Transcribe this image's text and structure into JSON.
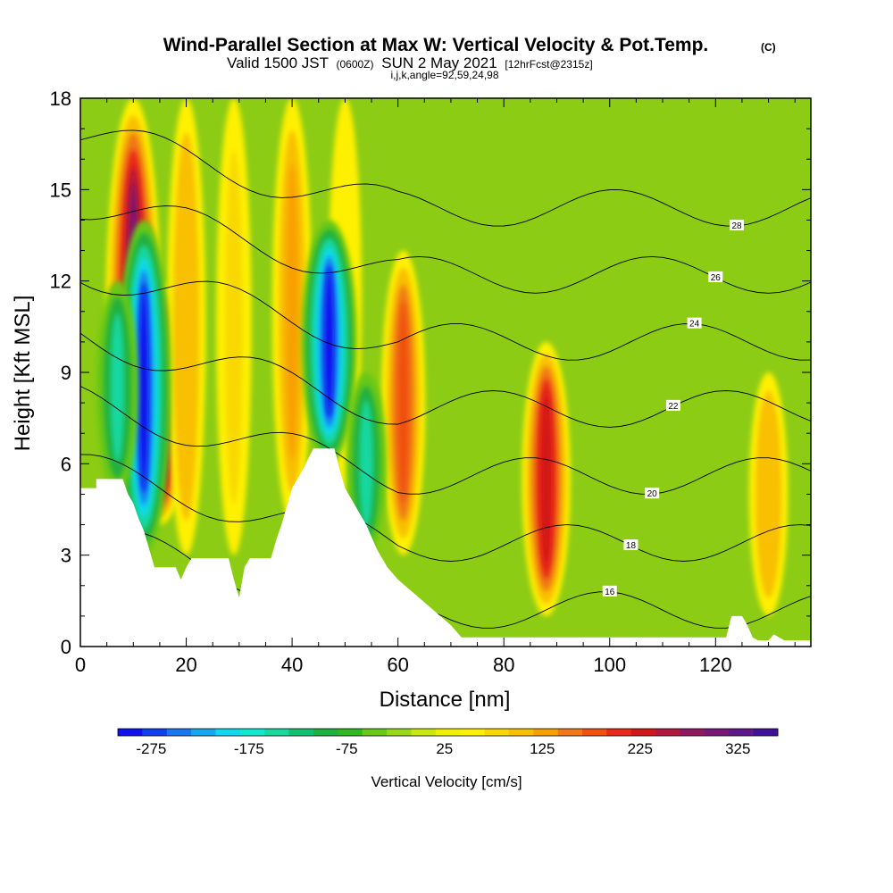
{
  "chart_data": {
    "type": "heatmap",
    "title": "Wind-Parallel Section at Max W: Vertical Velocity & Pot.Temp.",
    "title_mark": "(C)",
    "subtitle": {
      "valid_label": "Valid 1500 JST",
      "zulu": "(0600Z)",
      "date": "SUN 2 May 2021",
      "forecast": "[12hrFcst@2315z]"
    },
    "grid_info": "i,j,k,angle=92,59,24,98",
    "xlabel": "Distance [nm]",
    "ylabel": "Height [Kft MSL]",
    "xlim": [
      0,
      138
    ],
    "ylim": [
      0,
      18
    ],
    "xticks": [
      0,
      20,
      40,
      60,
      80,
      100,
      120
    ],
    "yticks": [
      0,
      3,
      6,
      9,
      12,
      15,
      18
    ],
    "colorbar": {
      "label": "Vertical Velocity [cm/s]",
      "ticks": [
        -275,
        -175,
        -75,
        25,
        125,
        225,
        325
      ],
      "min": -300,
      "max": 375,
      "step": 25,
      "colors": [
        "#1010f0",
        "#1040f0",
        "#1878f0",
        "#18a8f0",
        "#10d8f0",
        "#10e8d0",
        "#18d8a0",
        "#10c070",
        "#20b040",
        "#30b820",
        "#68c818",
        "#98d818",
        "#c8e810",
        "#f0f000",
        "#fff000",
        "#f8d800",
        "#f8c000",
        "#f8a000",
        "#f07818",
        "#f05010",
        "#e82818",
        "#d01818",
        "#b01840",
        "#901860",
        "#781878",
        "#601888",
        "#401098"
      ]
    },
    "theta_contours": {
      "label": "Potential temperature",
      "levels": [
        16,
        18,
        20,
        22,
        24,
        26,
        28
      ]
    },
    "updrafts": [
      {
        "x": 10,
        "ybot": 3,
        "ytop": 18,
        "w": 300
      },
      {
        "x": 15,
        "ybot": 4,
        "ytop": 12,
        "w": 350
      },
      {
        "x": 20,
        "ybot": 3,
        "ytop": 18,
        "w": 120
      },
      {
        "x": 29,
        "ybot": 3,
        "ytop": 18,
        "w": 80
      },
      {
        "x": 40,
        "ybot": 4,
        "ytop": 18,
        "w": 130
      },
      {
        "x": 50,
        "ybot": 5,
        "ytop": 18,
        "w": 60
      },
      {
        "x": 61,
        "ybot": 3,
        "ytop": 13,
        "w": 175
      },
      {
        "x": 88,
        "ybot": 1,
        "ytop": 10,
        "w": 225
      },
      {
        "x": 130,
        "ybot": 1,
        "ytop": 9,
        "w": 120
      }
    ],
    "downdrafts": [
      {
        "x": 12,
        "ybot": 3,
        "ytop": 14,
        "w": -290
      },
      {
        "x": 7,
        "ybot": 5,
        "ytop": 12,
        "w": -150
      },
      {
        "x": 47,
        "ybot": 6,
        "ytop": 14,
        "w": -300
      },
      {
        "x": 54,
        "ybot": 3,
        "ytop": 9,
        "w": -140
      }
    ],
    "terrain": [
      [
        0,
        5.2
      ],
      [
        3,
        5.2
      ],
      [
        3,
        5.5
      ],
      [
        8,
        5.5
      ],
      [
        9,
        5.0
      ],
      [
        10,
        4.7
      ],
      [
        11,
        4.2
      ],
      [
        12,
        3.8
      ],
      [
        13,
        3.2
      ],
      [
        14,
        2.6
      ],
      [
        18,
        2.6
      ],
      [
        19,
        2.2
      ],
      [
        20,
        2.6
      ],
      [
        21,
        2.9
      ],
      [
        28,
        2.9
      ],
      [
        29,
        2.2
      ],
      [
        30,
        1.6
      ],
      [
        31,
        2.6
      ],
      [
        32,
        2.9
      ],
      [
        36,
        2.9
      ],
      [
        37,
        3.5
      ],
      [
        38,
        4.0
      ],
      [
        39,
        4.6
      ],
      [
        40,
        5.2
      ],
      [
        42,
        5.8
      ],
      [
        44,
        6.5
      ],
      [
        48,
        6.5
      ],
      [
        49,
        5.8
      ],
      [
        50,
        5.2
      ],
      [
        51,
        4.9
      ],
      [
        52,
        4.6
      ],
      [
        53,
        4.3
      ],
      [
        54,
        4.0
      ],
      [
        55,
        3.6
      ],
      [
        56,
        3.2
      ],
      [
        57,
        2.9
      ],
      [
        58,
        2.6
      ],
      [
        60,
        2.2
      ],
      [
        62,
        1.9
      ],
      [
        64,
        1.6
      ],
      [
        66,
        1.3
      ],
      [
        68,
        1.0
      ],
      [
        70,
        0.7
      ],
      [
        72,
        0.3
      ],
      [
        122,
        0.3
      ],
      [
        123,
        1.0
      ],
      [
        125,
        1.0
      ],
      [
        126,
        0.7
      ],
      [
        127,
        0.3
      ],
      [
        128,
        0.2
      ],
      [
        130,
        0.2
      ],
      [
        131,
        0.4
      ],
      [
        133,
        0.2
      ],
      [
        138,
        0.2
      ]
    ]
  }
}
